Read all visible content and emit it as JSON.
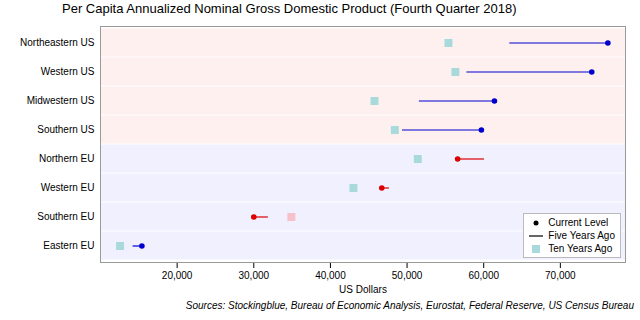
{
  "chart_data": {
    "type": "dumbbell",
    "title": "Per Capita Annualized Nominal Gross Domestic Product (Fourth Quarter 2018)",
    "x_label": "US Dollars",
    "caption": "Sources: Stockingblue, Bureau of Economic Analysis, Eurostat, Federal Reserve, US Census Bureau",
    "orientation": "horizontal",
    "categories": [
      "Northeastern US",
      "Western US",
      "Midwestern US",
      "Southern US",
      "Northern EU",
      "Western EU",
      "Southern EU",
      "Eastern EU"
    ],
    "series": [
      {
        "name": "Current Level",
        "marker": "circle",
        "color": "#000000",
        "values": [
          76200,
          74100,
          61400,
          59700,
          56600,
          46700,
          30000,
          15400
        ],
        "colors": [
          "#0000cc",
          "#0000cc",
          "#0000cc",
          "#0000cc",
          "#dd0000",
          "#dd0000",
          "#dd0000",
          "#0000cc"
        ]
      },
      {
        "name": "Five Years Ago",
        "line_style": "solid",
        "color": "#000000",
        "values": [
          63400,
          57800,
          51600,
          49400,
          60100,
          47700,
          31900,
          14250
        ],
        "colors": [
          "#0000cc",
          "#0000cc",
          "#0000cc",
          "#0000cc",
          "#dd0000",
          "#dd0000",
          "#dd0000",
          "#0000cc"
        ]
      },
      {
        "name": "Ten Years Ago",
        "marker": "square",
        "color": "#a8dadc",
        "values": [
          55400,
          56300,
          45750,
          48400,
          51400,
          43000,
          34900,
          12550
        ],
        "colors": [
          "#a8dadc",
          "#a8dadc",
          "#a8dadc",
          "#a8dadc",
          "#a8dadc",
          "#a8dadc",
          "#f4c2c8",
          "#a8dadc"
        ]
      }
    ],
    "xlim": [
      10000,
      78500
    ],
    "xticks": [
      {
        "value": 20000,
        "label": "20,000"
      },
      {
        "value": 30000,
        "label": "30,000"
      },
      {
        "value": 40000,
        "label": "40,000"
      },
      {
        "value": 50000,
        "label": "50,000"
      },
      {
        "value": 60000,
        "label": "60,000"
      },
      {
        "value": 70000,
        "label": "70,000"
      }
    ],
    "grid": false,
    "legend": "bottom-right"
  }
}
